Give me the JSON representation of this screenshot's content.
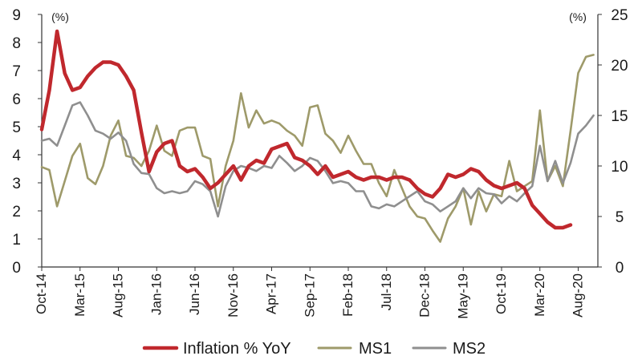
{
  "chart_data": {
    "type": "line",
    "left_axis": {
      "unit_label": "(%)",
      "ylim": [
        0,
        9
      ],
      "ticks": [
        0,
        1,
        2,
        3,
        4,
        5,
        6,
        7,
        8,
        9
      ]
    },
    "right_axis": {
      "unit_label": "(%)",
      "ylim": [
        0,
        25
      ],
      "ticks": [
        0,
        5,
        10,
        15,
        20,
        25
      ]
    },
    "x_ticks": [
      "Oct-14",
      "Mar-15",
      "Aug-15",
      "Jan-16",
      "Jun-16",
      "Nov-16",
      "Apr-17",
      "Sep-17",
      "Feb-18",
      "Jul-18",
      "Dec-18",
      "May-19",
      "Oct-19",
      "Mar-20",
      "Aug-20"
    ],
    "x_start": "Oct-14",
    "legend_position": "bottom",
    "grid": false,
    "series": [
      {
        "name": "Inflation % YoY",
        "axis": "left",
        "color": "#c0282d",
        "values": [
          4.9,
          6.3,
          8.4,
          6.9,
          6.3,
          6.4,
          6.8,
          7.1,
          7.3,
          7.3,
          7.2,
          6.8,
          6.3,
          4.8,
          3.4,
          4.1,
          4.4,
          4.5,
          3.6,
          3.4,
          3.5,
          3.2,
          2.8,
          3.0,
          3.3,
          3.6,
          3.1,
          3.6,
          3.8,
          3.7,
          4.2,
          4.3,
          4.4,
          3.9,
          3.8,
          3.6,
          3.3,
          3.6,
          3.2,
          3.3,
          3.4,
          3.2,
          3.1,
          3.2,
          3.2,
          3.1,
          3.2,
          3.2,
          3.1,
          2.8,
          2.6,
          2.5,
          2.8,
          3.3,
          3.2,
          3.3,
          3.5,
          3.4,
          3.1,
          2.9,
          2.8,
          2.9,
          3.0,
          2.8,
          2.2,
          1.9,
          1.6,
          1.4,
          1.4,
          1.5
        ]
      },
      {
        "name": "MS1",
        "axis": "right",
        "color": "#9e9a6a",
        "values": [
          9.9,
          9.6,
          6.0,
          8.5,
          11.0,
          12.2,
          8.8,
          8.2,
          10.0,
          13.0,
          14.5,
          11.0,
          10.8,
          10.0,
          11.5,
          14.0,
          11.5,
          11.0,
          13.5,
          13.8,
          13.8,
          11.0,
          10.7,
          6.0,
          10.0,
          12.5,
          17.2,
          13.8,
          15.5,
          14.2,
          14.5,
          14.2,
          13.5,
          13.0,
          12.0,
          15.8,
          16.0,
          13.2,
          12.5,
          11.3,
          13.0,
          11.5,
          10.2,
          10.2,
          8.3,
          7.0,
          9.6,
          7.8,
          6.0,
          5.0,
          4.8,
          3.6,
          2.5,
          4.8,
          6.0,
          7.8,
          4.2,
          7.5,
          5.5,
          7.2,
          7.0,
          10.5,
          7.5,
          8.0,
          8.5,
          15.5,
          8.5,
          10.0,
          8.0,
          13.5,
          19.2,
          20.8,
          21.0
        ]
      },
      {
        "name": "MS2",
        "axis": "right",
        "color": "#8f8f8f",
        "values": [
          12.5,
          12.7,
          12.0,
          14.0,
          16.0,
          16.3,
          15.0,
          13.5,
          13.2,
          12.7,
          13.3,
          12.5,
          10.2,
          9.3,
          9.2,
          7.8,
          7.3,
          7.5,
          7.3,
          7.5,
          8.5,
          8.2,
          7.5,
          5.0,
          8.0,
          9.5,
          10.0,
          9.8,
          9.5,
          10.0,
          9.8,
          11.0,
          10.3,
          9.5,
          10.0,
          10.8,
          10.5,
          9.5,
          8.3,
          8.5,
          8.3,
          7.5,
          7.5,
          6.0,
          5.8,
          6.2,
          6.0,
          6.5,
          7.0,
          7.5,
          6.5,
          6.2,
          5.5,
          6.0,
          6.5,
          7.8,
          6.8,
          7.8,
          7.3,
          7.2,
          6.3,
          7.0,
          6.5,
          7.3,
          8.0,
          12.0,
          8.5,
          10.5,
          8.3,
          10.3,
          13.2,
          14.0,
          15.0
        ]
      }
    ]
  }
}
